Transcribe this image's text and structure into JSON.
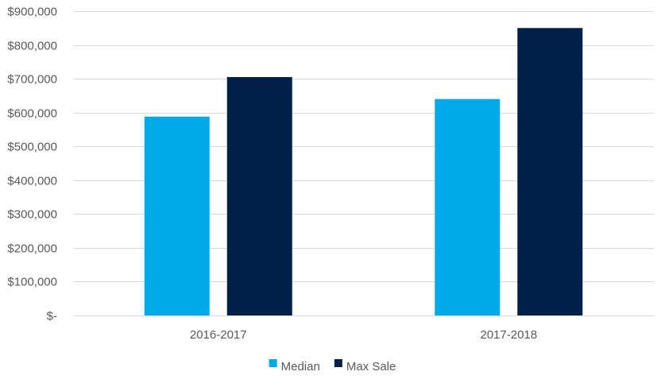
{
  "chart_data": {
    "type": "bar",
    "categories": [
      "2016-2017",
      "2017-2018"
    ],
    "series": [
      {
        "name": "Median",
        "values": [
          588000,
          640000
        ],
        "color": "#00a9e8"
      },
      {
        "name": "Max Sale",
        "values": [
          705000,
          850000
        ],
        "color": "#002049"
      }
    ],
    "ylim": [
      0,
      900000
    ],
    "y_ticks": [
      0,
      100000,
      200000,
      300000,
      400000,
      500000,
      600000,
      700000,
      800000,
      900000
    ],
    "y_tick_labels": [
      "$-",
      "$100,000",
      "$200,000",
      "$300,000",
      "$400,000",
      "$500,000",
      "$600,000",
      "$700,000",
      "$800,000",
      "$900,000"
    ],
    "grid": true,
    "legend_position": "bottom",
    "title": "",
    "xlabel": "",
    "ylabel": ""
  }
}
